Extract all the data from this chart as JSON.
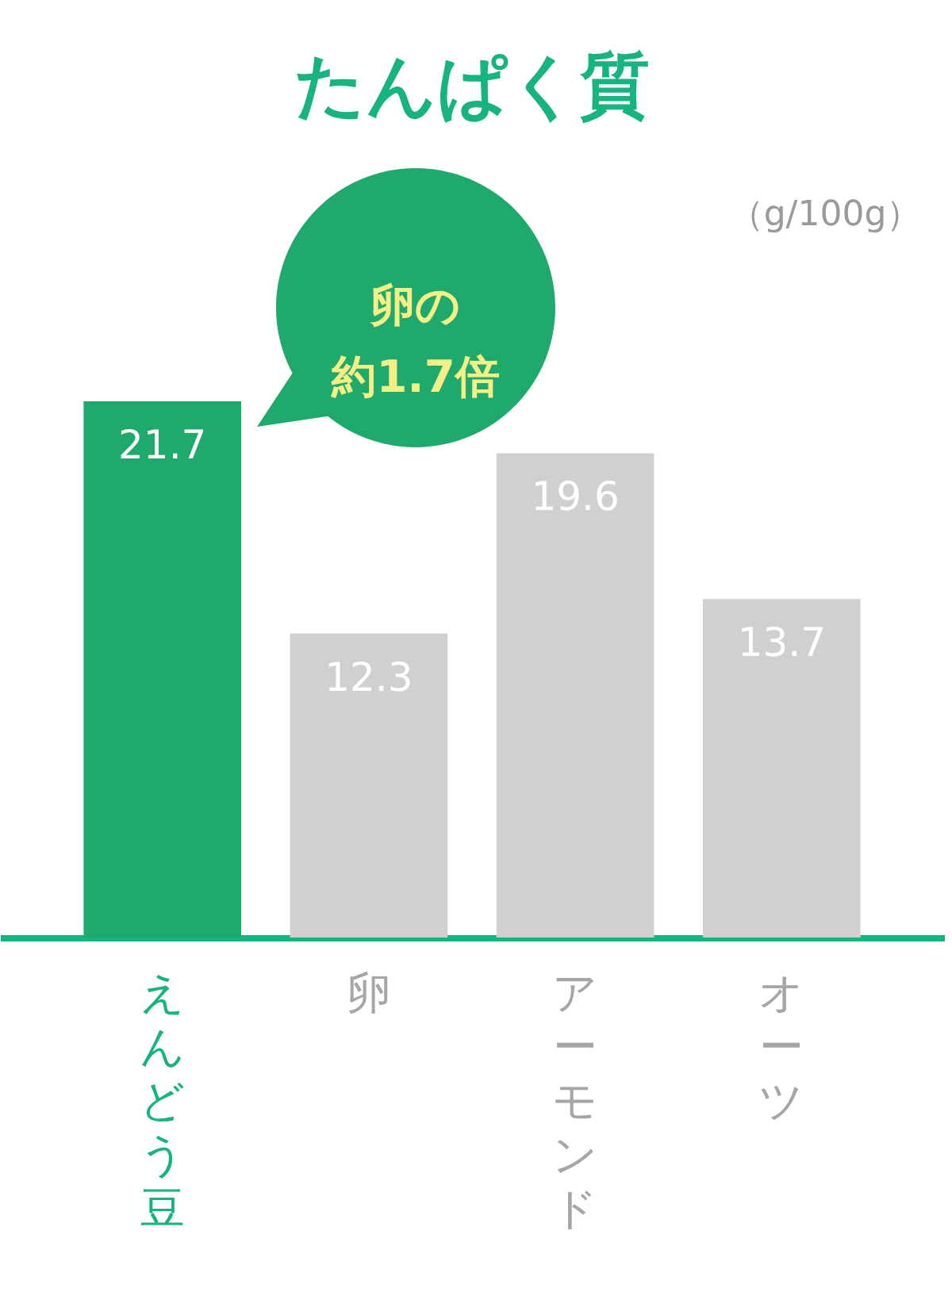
{
  "chart_data": {
    "type": "bar",
    "title": "たんぱく質",
    "categories": [
      "えんどう豆",
      "卵",
      "アーモンド",
      "オーツ"
    ],
    "values": [
      21.7,
      12.3,
      19.6,
      13.7
    ],
    "colors": [
      "#1fa96c",
      "#d0d0d0",
      "#d0d0d0",
      "#d0d0d0"
    ],
    "data_labels": true,
    "annotations": [
      "（g/100g）",
      "卵の約1.7倍"
    ]
  }
}
